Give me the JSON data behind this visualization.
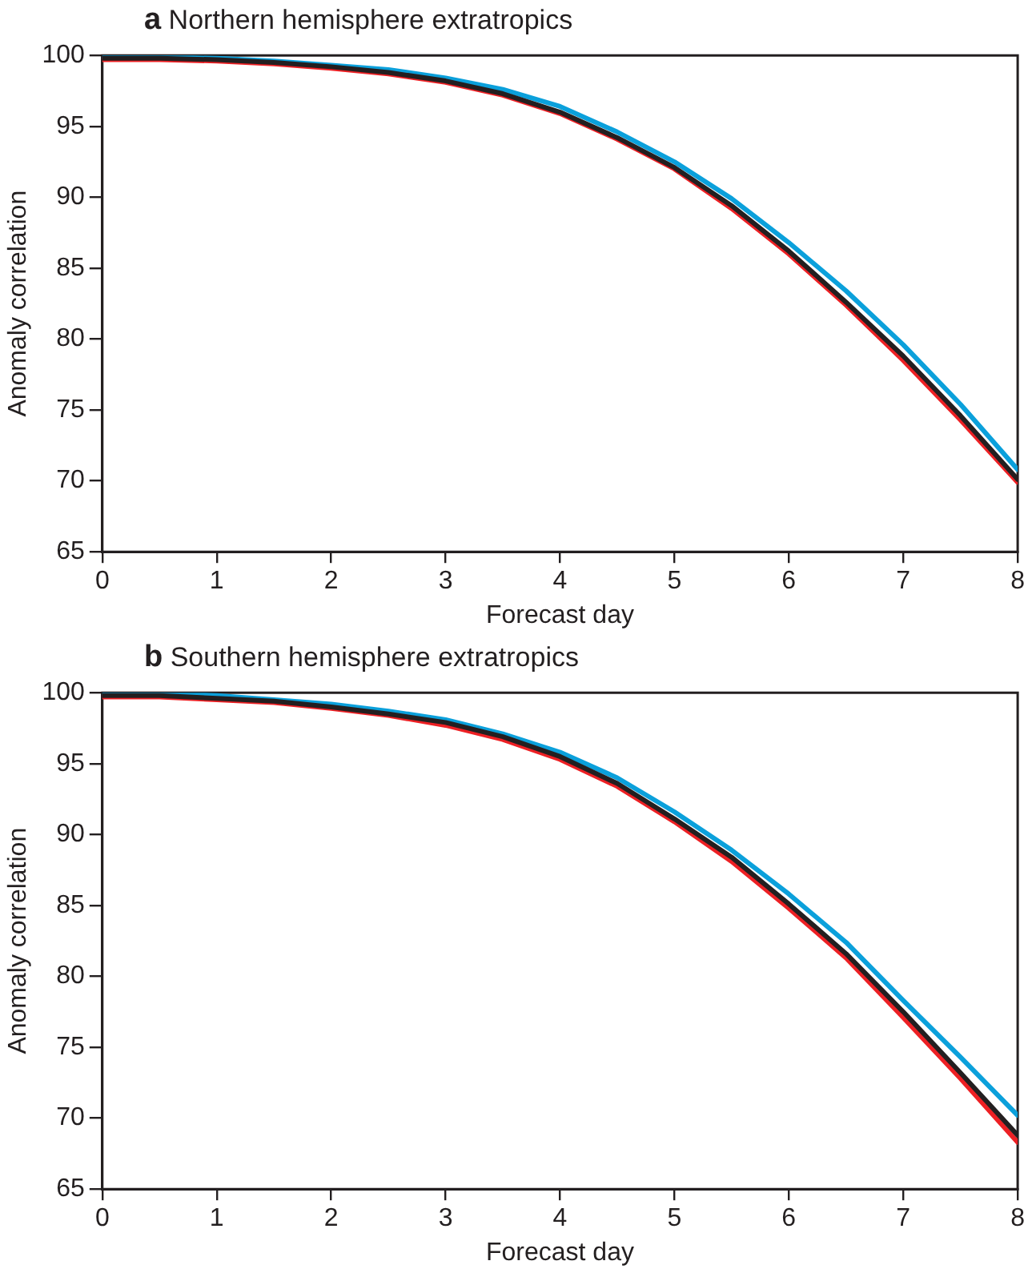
{
  "chart_data": [
    {
      "type": "line",
      "title": "a Northern hemisphere extratropics",
      "xlabel": "Forecast day",
      "ylabel": "Anomaly correlation",
      "x": [
        0,
        0.5,
        1,
        1.5,
        2,
        2.5,
        3,
        3.5,
        4,
        4.5,
        5,
        5.5,
        6,
        6.5,
        7,
        7.5,
        8
      ],
      "xlim": [
        0,
        8
      ],
      "xticks": [
        0,
        1,
        2,
        3,
        4,
        5,
        6,
        7,
        8
      ],
      "ylim": [
        65,
        100
      ],
      "yticks": [
        65,
        70,
        75,
        80,
        85,
        90,
        95,
        100
      ],
      "grid": false,
      "legend": false,
      "marker": "none",
      "line_style": "solid",
      "series": [
        {
          "color": "#231f20",
          "values": [
            99.8,
            99.8,
            99.7,
            99.5,
            99.2,
            98.8,
            98.2,
            97.3,
            96.0,
            94.2,
            92.1,
            89.4,
            86.2,
            82.6,
            78.8,
            74.6,
            70.1
          ]
        },
        {
          "color": "#ed2024",
          "values": [
            99.7,
            99.7,
            99.6,
            99.4,
            99.1,
            98.7,
            98.1,
            97.2,
            95.9,
            94.1,
            92.0,
            89.2,
            86.0,
            82.4,
            78.5,
            74.3,
            69.9
          ]
        },
        {
          "color": "#0ba0db",
          "values": [
            99.9,
            99.9,
            99.8,
            99.6,
            99.3,
            99.0,
            98.4,
            97.6,
            96.4,
            94.6,
            92.5,
            89.9,
            86.8,
            83.4,
            79.6,
            75.4,
            70.8
          ]
        }
      ]
    },
    {
      "type": "line",
      "title": "b Southern hemisphere extratropics",
      "xlabel": "Forecast day",
      "ylabel": "Anomaly correlation",
      "x": [
        0,
        0.5,
        1,
        1.5,
        2,
        2.5,
        3,
        3.5,
        4,
        4.5,
        5,
        5.5,
        6,
        6.5,
        7,
        7.5,
        8
      ],
      "xlim": [
        0,
        8
      ],
      "xticks": [
        0,
        1,
        2,
        3,
        4,
        5,
        6,
        7,
        8
      ],
      "ylim": [
        65,
        100
      ],
      "yticks": [
        65,
        70,
        75,
        80,
        85,
        90,
        95,
        100
      ],
      "grid": false,
      "legend": false,
      "marker": "none",
      "line_style": "solid",
      "series": [
        {
          "color": "#231f20",
          "values": [
            99.8,
            99.8,
            99.6,
            99.4,
            99.0,
            98.5,
            97.9,
            96.9,
            95.5,
            93.6,
            91.1,
            88.4,
            85.1,
            81.6,
            77.5,
            73.2,
            68.8
          ]
        },
        {
          "color": "#ed2024",
          "values": [
            99.7,
            99.7,
            99.5,
            99.3,
            98.9,
            98.4,
            97.7,
            96.7,
            95.3,
            93.4,
            90.9,
            88.1,
            84.8,
            81.3,
            77.1,
            72.8,
            68.3
          ]
        },
        {
          "color": "#0ba0db",
          "values": [
            100,
            100,
            99.8,
            99.5,
            99.2,
            98.7,
            98.1,
            97.1,
            95.8,
            94.0,
            91.6,
            88.9,
            85.8,
            82.4,
            78.3,
            74.3,
            70.2
          ]
        }
      ]
    }
  ]
}
